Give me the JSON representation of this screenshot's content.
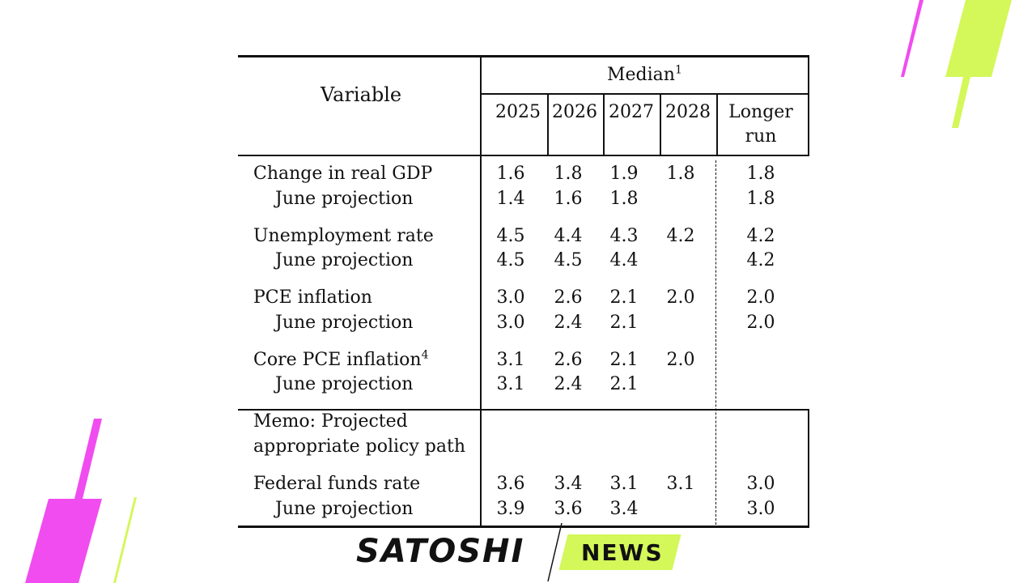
{
  "table": {
    "header": {
      "variable": "Variable",
      "group": "Median",
      "group_footnote": "1",
      "years": [
        "2025",
        "2026",
        "2027",
        "2028"
      ],
      "longer_run_line1": "Longer",
      "longer_run_line2": "run"
    },
    "rows": [
      {
        "label": "Change in real GDP",
        "footnote": "",
        "values": [
          "1.6",
          "1.8",
          "1.9",
          "1.8"
        ],
        "longer_run": "1.8",
        "june_label": "June projection",
        "june_values": [
          "1.4",
          "1.6",
          "1.8",
          ""
        ],
        "june_longer_run": "1.8"
      },
      {
        "label": "Unemployment rate",
        "footnote": "",
        "values": [
          "4.5",
          "4.4",
          "4.3",
          "4.2"
        ],
        "longer_run": "4.2",
        "june_label": "June projection",
        "june_values": [
          "4.5",
          "4.5",
          "4.4",
          ""
        ],
        "june_longer_run": "4.2"
      },
      {
        "label": "PCE inflation",
        "footnote": "",
        "values": [
          "3.0",
          "2.6",
          "2.1",
          "2.0"
        ],
        "longer_run": "2.0",
        "june_label": "June projection",
        "june_values": [
          "3.0",
          "2.4",
          "2.1",
          ""
        ],
        "june_longer_run": "2.0"
      },
      {
        "label": "Core PCE inflation",
        "footnote": "4",
        "values": [
          "3.1",
          "2.6",
          "2.1",
          "2.0"
        ],
        "longer_run": "",
        "june_label": "June projection",
        "june_values": [
          "3.1",
          "2.4",
          "2.1",
          ""
        ],
        "june_longer_run": ""
      }
    ],
    "memo": {
      "line1": "Memo: Projected",
      "line2": "appropriate policy path"
    },
    "fed_funds": {
      "label": "Federal funds rate",
      "values": [
        "3.6",
        "3.4",
        "3.1",
        "3.1"
      ],
      "longer_run": "3.0",
      "june_label": "June projection",
      "june_values": [
        "3.9",
        "3.6",
        "3.4",
        ""
      ],
      "june_longer_run": "3.0"
    }
  },
  "logo": {
    "word1": "SATOSHI",
    "word2": "NEWS"
  },
  "colors": {
    "accent_magenta": "#f04cf0",
    "accent_lime": "#d4f75a",
    "text": "#111111"
  }
}
